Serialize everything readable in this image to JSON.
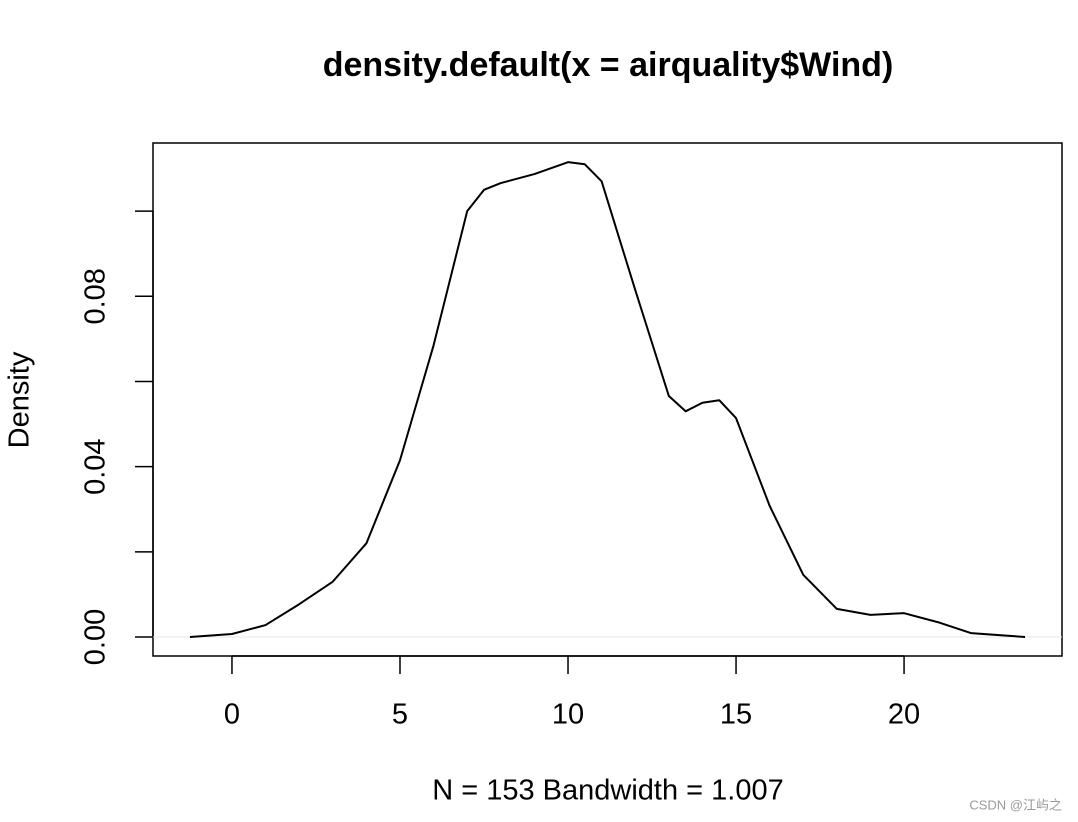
{
  "chart_data": {
    "type": "line",
    "title": "density.default(x = airquality$Wind)",
    "x_label": "N = 153   Bandwidth = 1.007",
    "y_label": "Density",
    "x": [
      -1.25,
      0,
      1,
      2,
      3,
      4,
      5,
      6,
      7,
      7.5,
      8,
      9,
      10,
      10.5,
      11,
      12,
      13,
      13.5,
      14,
      14.5,
      15,
      16,
      17,
      18,
      19,
      20,
      21,
      22,
      23.6
    ],
    "series": [
      {
        "color": "#000000",
        "values": [
          0,
          0.0007,
          0.0028,
          0.0077,
          0.013,
          0.022,
          0.0415,
          0.0685,
          0.1,
          0.105,
          0.1066,
          0.1087,
          0.1115,
          0.111,
          0.107,
          0.0815,
          0.0566,
          0.053,
          0.055,
          0.0556,
          0.0514,
          0.0308,
          0.0146,
          0.0066,
          0.0052,
          0.0056,
          0.0035,
          0.0009,
          0
        ]
      }
    ],
    "xlim": [
      -2.35,
      24.7
    ],
    "ylim": [
      -0.00446,
      0.116
    ],
    "xticks": [
      0,
      5,
      10,
      15,
      20
    ],
    "yticks": [
      {
        "value": 0,
        "label": "0.00"
      },
      {
        "value": 0.04,
        "label": "0.04"
      },
      {
        "value": 0.08,
        "label": "0.08"
      }
    ],
    "yminor_ticks": [
      0.02,
      0.06,
      0.1
    ],
    "baseline": 0,
    "watermark": "CSDN @江屿之"
  }
}
